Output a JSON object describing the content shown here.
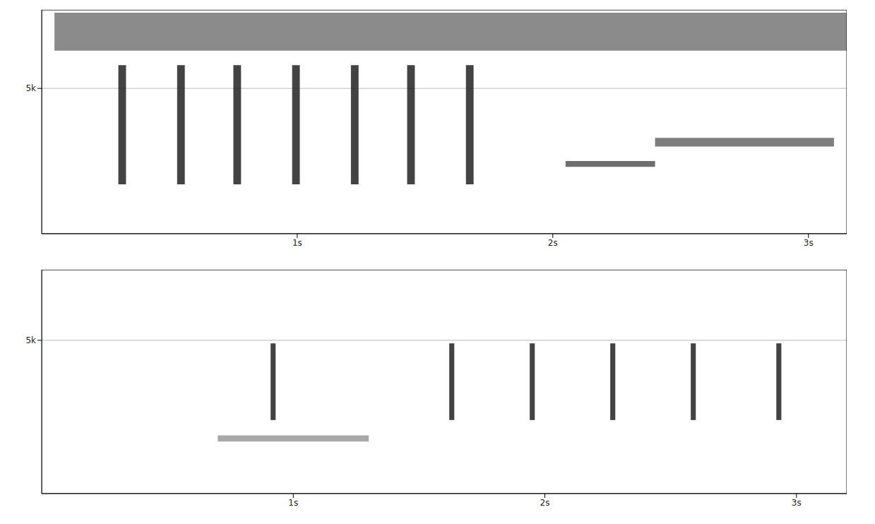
{
  "chart_data": [
    {
      "type": "spectrogram",
      "grid": true,
      "xlim": [
        0,
        3.15
      ],
      "xticks": [
        {
          "value": 1,
          "label": "1s"
        },
        {
          "value": 2,
          "label": "2s"
        },
        {
          "value": 3,
          "label": "3s"
        }
      ],
      "ylim": [
        0,
        7700
      ],
      "yticks": [
        {
          "value": 5000,
          "label": "5k"
        }
      ],
      "events": [
        {
          "t_start": 0.05,
          "t_end": 3.15,
          "f_low": 6300,
          "f_high": 7600
        },
        {
          "t_start": 0.3,
          "t_end": 0.33,
          "f_low": 1700,
          "f_high": 5800
        },
        {
          "t_start": 0.53,
          "t_end": 0.56,
          "f_low": 1700,
          "f_high": 5800
        },
        {
          "t_start": 0.75,
          "t_end": 0.78,
          "f_low": 1700,
          "f_high": 5800
        },
        {
          "t_start": 0.98,
          "t_end": 1.01,
          "f_low": 1700,
          "f_high": 5800
        },
        {
          "t_start": 1.21,
          "t_end": 1.24,
          "f_low": 1700,
          "f_high": 5800
        },
        {
          "t_start": 1.43,
          "t_end": 1.46,
          "f_low": 1700,
          "f_high": 5800
        },
        {
          "t_start": 1.66,
          "t_end": 1.69,
          "f_low": 1700,
          "f_high": 5800
        },
        {
          "t_start": 2.05,
          "t_end": 2.4,
          "f_low": 2300,
          "f_high": 2500
        },
        {
          "t_start": 2.4,
          "t_end": 3.1,
          "f_low": 3000,
          "f_high": 3300
        }
      ],
      "colors": [
        "#777777",
        "#222222",
        "#222222",
        "#222222",
        "#222222",
        "#222222",
        "#222222",
        "#222222",
        "#555555",
        "#666666"
      ]
    },
    {
      "type": "spectrogram",
      "grid": true,
      "xlim": [
        0,
        3.2
      ],
      "xticks": [
        {
          "value": 1,
          "label": "1s"
        },
        {
          "value": 2,
          "label": "2s"
        },
        {
          "value": 3,
          "label": "3s"
        }
      ],
      "ylim": [
        0,
        7300
      ],
      "yticks": [
        {
          "value": 5000,
          "label": "5k"
        }
      ],
      "events": [
        {
          "t_start": 0.7,
          "t_end": 1.3,
          "f_low": 1700,
          "f_high": 1900
        },
        {
          "t_start": 0.91,
          "t_end": 0.93,
          "f_low": 2400,
          "f_high": 4900
        },
        {
          "t_start": 1.62,
          "t_end": 1.64,
          "f_low": 2400,
          "f_high": 4900
        },
        {
          "t_start": 1.94,
          "t_end": 1.96,
          "f_low": 2400,
          "f_high": 4900
        },
        {
          "t_start": 2.26,
          "t_end": 2.28,
          "f_low": 2400,
          "f_high": 4900
        },
        {
          "t_start": 2.58,
          "t_end": 2.6,
          "f_low": 2400,
          "f_high": 4900
        },
        {
          "t_start": 2.92,
          "t_end": 2.94,
          "f_low": 2400,
          "f_high": 4900
        }
      ],
      "colors": [
        "#999999",
        "#222222",
        "#222222",
        "#222222",
        "#222222",
        "#222222",
        "#222222"
      ]
    }
  ]
}
